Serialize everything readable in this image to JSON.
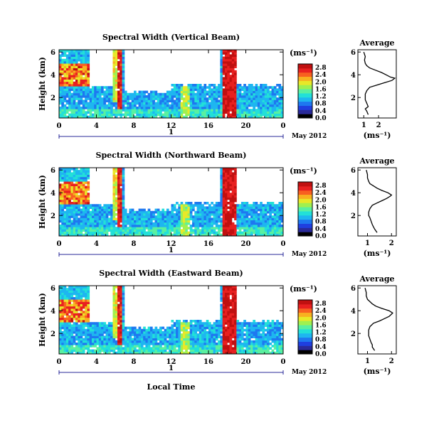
{
  "date_label": "May 2012",
  "colorbar_unit": "(ms⁻¹)",
  "avg_unit": "(ms⁻¹)",
  "avg_title": "Average",
  "xlabel": "Local Time",
  "ylabel": "Height (km)",
  "day_marker": "1",
  "colormap": [
    "#000000",
    "#2a2a9a",
    "#1f3fe0",
    "#1e78f0",
    "#1eb6f0",
    "#22e0d8",
    "#5af0a0",
    "#a0f050",
    "#e8e828",
    "#f8b020",
    "#f86020",
    "#e82020",
    "#c01010"
  ],
  "chart_data": [
    {
      "type": "heatmap",
      "title": "Spectral Width (Vertical Beam)",
      "x_ticks": [
        "0",
        "4",
        "8",
        "12",
        "16",
        "20",
        "0"
      ],
      "x_range": [
        0,
        24
      ],
      "y_ticks": [
        "2",
        "4",
        "6"
      ],
      "y_range": [
        0.2,
        6.2
      ],
      "colorbar_ticks": [
        "0.0",
        "0.4",
        "0.8",
        "1.2",
        "1.6",
        "2.0",
        "2.4",
        "2.8"
      ],
      "colorbar_range": [
        0,
        3.0
      ],
      "average_profile": {
        "x_ticks": [
          "1",
          "2"
        ],
        "x_range": [
          0.6,
          3.2
        ],
        "y_ticks": [
          "2",
          "4",
          "6"
        ],
        "y_range": [
          0.2,
          6.2
        ],
        "height": [
          0.5,
          0.8,
          1.0,
          1.2,
          1.5,
          1.8,
          2.0,
          2.3,
          2.6,
          2.9,
          3.1,
          3.3,
          3.5,
          3.7,
          3.8,
          4.0,
          4.2,
          4.4,
          4.6,
          4.8,
          5.0,
          5.3,
          5.6,
          6.0
        ],
        "width": [
          1.3,
          1.2,
          1.1,
          1.3,
          1.2,
          1.1,
          1.1,
          1.1,
          1.2,
          1.4,
          1.9,
          2.4,
          2.9,
          3.1,
          2.8,
          2.5,
          2.2,
          1.8,
          1.4,
          1.2,
          1.1,
          1.05,
          1.1,
          1.0
        ]
      }
    },
    {
      "type": "heatmap",
      "title": "Spectral Width (Northward Beam)",
      "x_ticks": [
        "0",
        "4",
        "8",
        "12",
        "16",
        "20",
        "0"
      ],
      "x_range": [
        0,
        24
      ],
      "y_ticks": [
        "2",
        "4",
        "6"
      ],
      "y_range": [
        0.2,
        6.2
      ],
      "colorbar_ticks": [
        "0.0",
        "0.4",
        "0.8",
        "1.2",
        "1.6",
        "2.0",
        "2.4",
        "2.8"
      ],
      "colorbar_range": [
        0,
        3.0
      ],
      "average_profile": {
        "x_ticks": [
          "1",
          "2"
        ],
        "x_range": [
          0.6,
          2.2
        ],
        "y_ticks": [
          "2",
          "4",
          "6"
        ],
        "y_range": [
          0.2,
          6.2
        ],
        "height": [
          0.5,
          0.8,
          1.0,
          1.2,
          1.5,
          1.8,
          2.0,
          2.3,
          2.6,
          2.9,
          3.1,
          3.3,
          3.5,
          3.7,
          3.8,
          4.0,
          4.2,
          4.4,
          4.6,
          4.8,
          5.0,
          5.3,
          5.6,
          6.0
        ],
        "width": [
          1.4,
          1.3,
          1.25,
          1.2,
          1.15,
          1.1,
          1.05,
          1.05,
          1.1,
          1.2,
          1.4,
          1.6,
          1.8,
          1.95,
          2.0,
          1.85,
          1.6,
          1.4,
          1.25,
          1.1,
          1.05,
          1.0,
          1.0,
          0.95
        ]
      }
    },
    {
      "type": "heatmap",
      "title": "Spectral Width (Eastward Beam)",
      "x_ticks": [
        "0",
        "4",
        "8",
        "12",
        "16",
        "20",
        "0"
      ],
      "x_range": [
        0,
        24
      ],
      "y_ticks": [
        "2",
        "4",
        "6"
      ],
      "y_range": [
        0.2,
        6.2
      ],
      "colorbar_ticks": [
        "0.0",
        "0.4",
        "0.8",
        "1.2",
        "1.6",
        "2.0",
        "2.4",
        "2.8"
      ],
      "colorbar_range": [
        0,
        3.0
      ],
      "average_profile": {
        "x_ticks": [
          "1",
          "2"
        ],
        "x_range": [
          0.6,
          2.2
        ],
        "y_ticks": [
          "2",
          "4",
          "6"
        ],
        "y_range": [
          0.2,
          6.2
        ],
        "height": [
          0.5,
          0.8,
          1.0,
          1.2,
          1.5,
          1.8,
          2.0,
          2.3,
          2.6,
          2.9,
          3.1,
          3.3,
          3.5,
          3.7,
          3.8,
          4.0,
          4.2,
          4.4,
          4.6,
          4.8,
          5.0,
          5.3,
          5.6,
          6.0
        ],
        "width": [
          1.3,
          1.2,
          1.2,
          1.15,
          1.1,
          1.05,
          1.05,
          1.05,
          1.1,
          1.25,
          1.5,
          1.7,
          1.9,
          2.0,
          2.05,
          1.9,
          1.6,
          1.35,
          1.2,
          1.1,
          1.0,
          0.95,
          0.95,
          0.9
        ]
      }
    }
  ]
}
